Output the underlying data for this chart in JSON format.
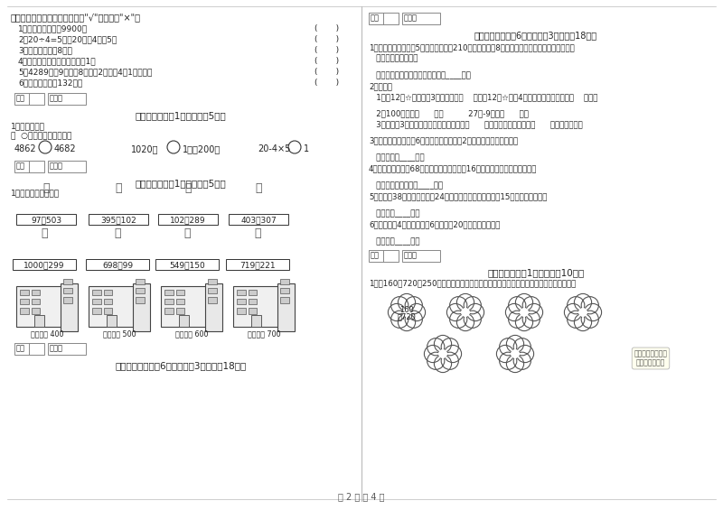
{
  "bg_color": "#ffffff",
  "page_num": "第 2 页 共 4 页",
  "building_labels": [
    "得数接近 400",
    "得数大约 500",
    "得数接近 600",
    "得数大约 700"
  ],
  "math_boxes_row1": [
    "97+503",
    "395+102",
    "102+289",
    "403+307"
  ],
  "math_boxes_row2": [
    "1000-299",
    "698-99",
    "549-150",
    "719-221"
  ]
}
